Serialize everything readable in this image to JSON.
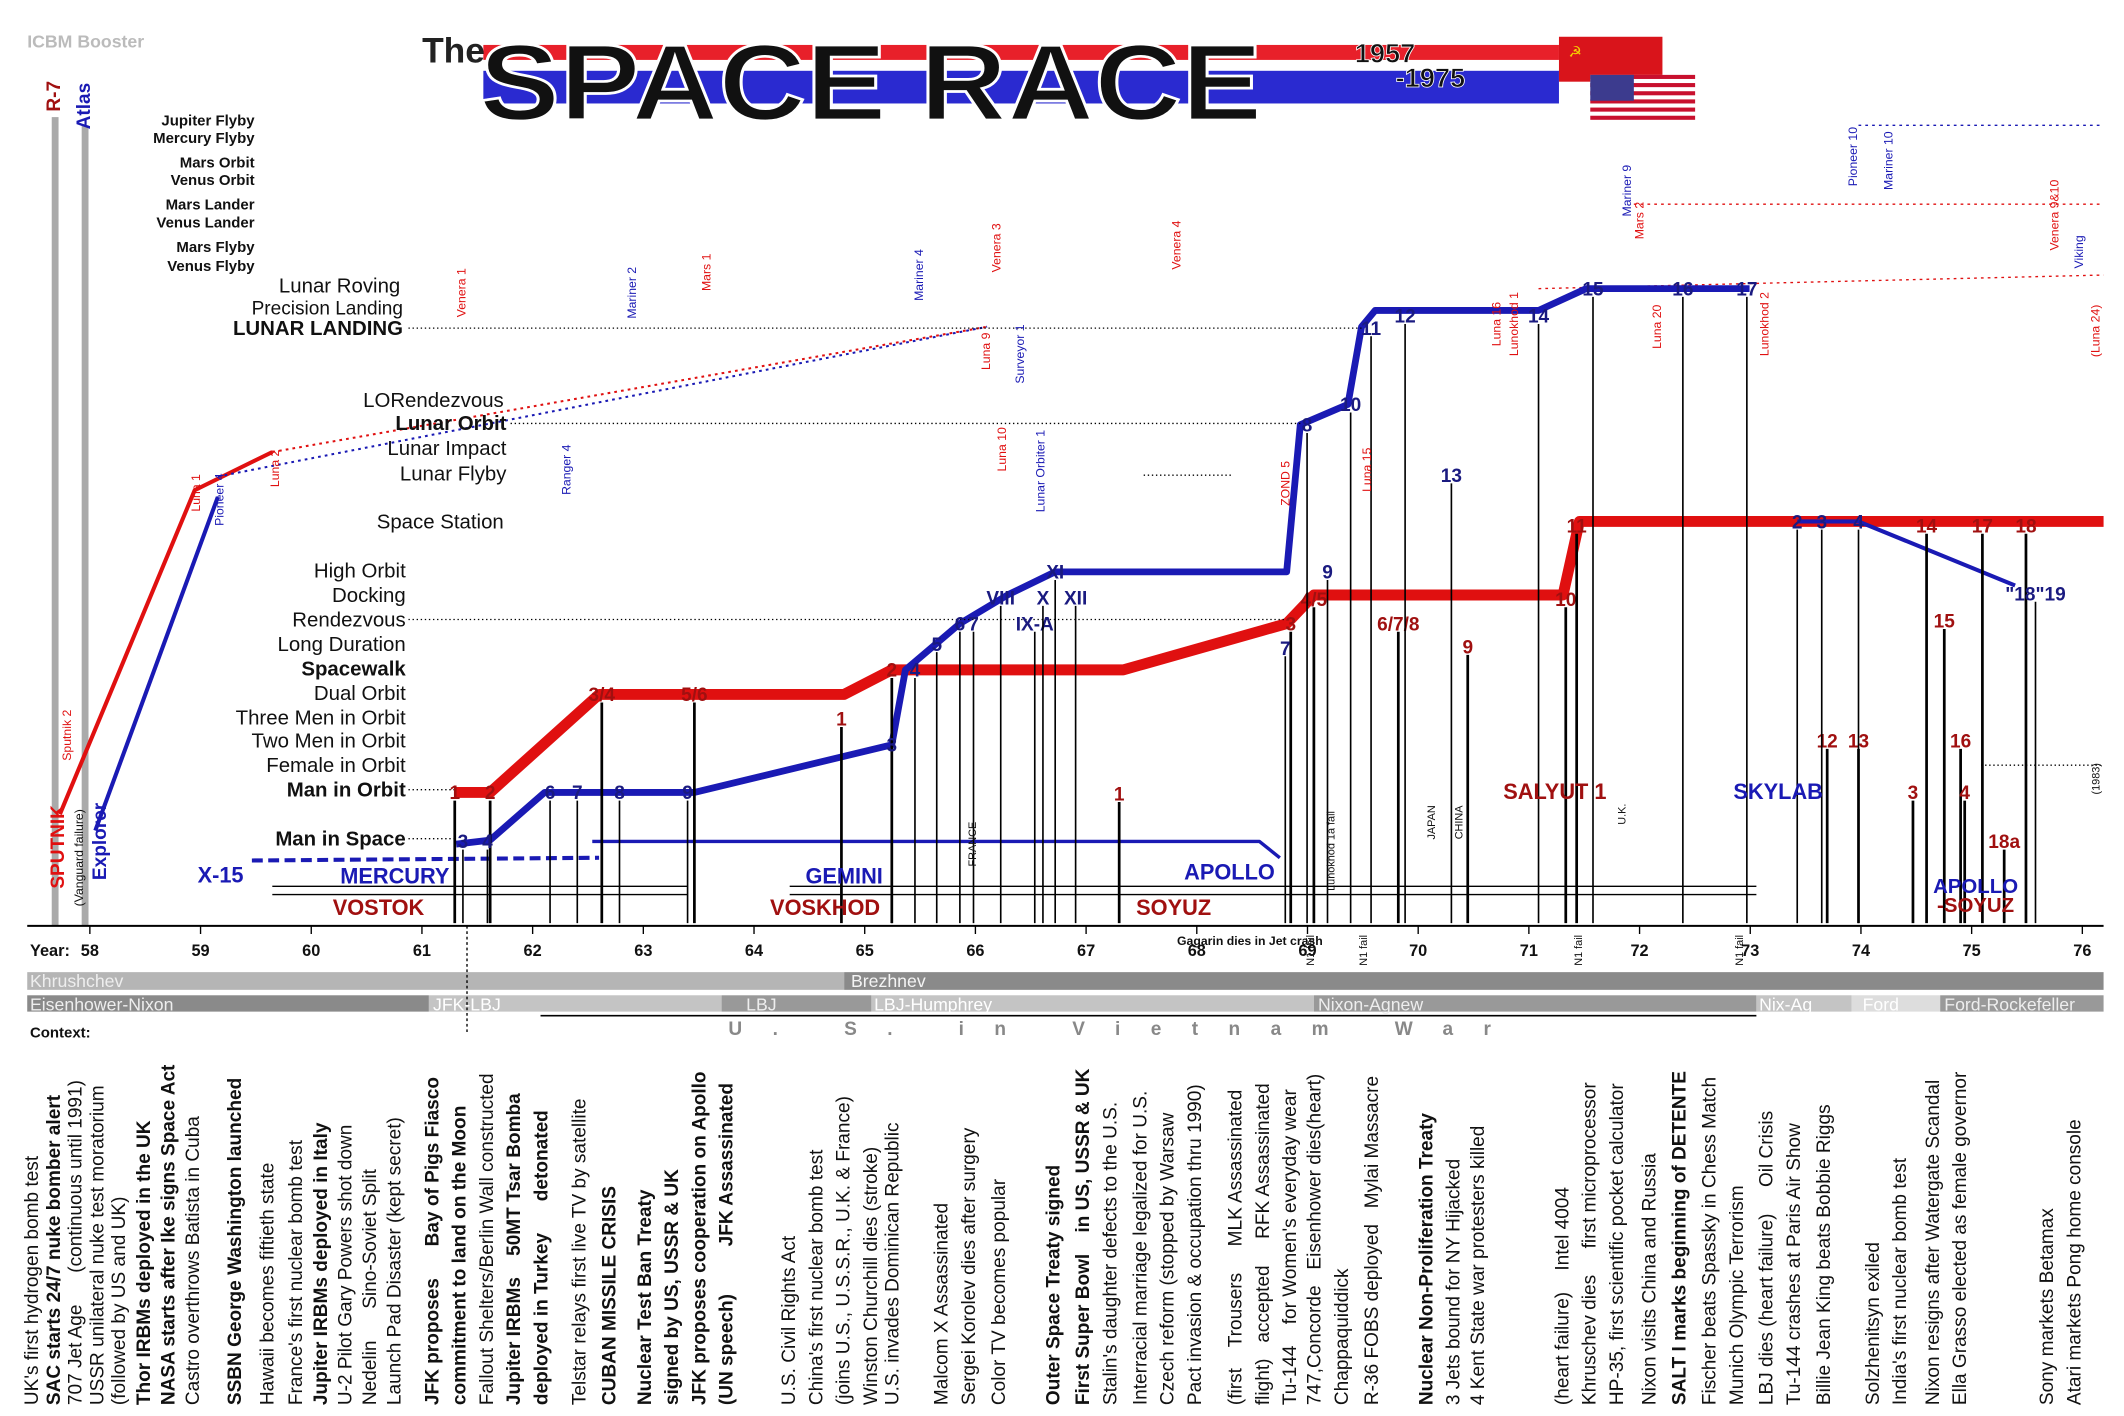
{
  "header": {
    "title_prefix": "The",
    "title": "SPACE RACE",
    "start": "1957",
    "end": "-1975",
    "booster_heading": "ICBM Booster",
    "boosters": [
      "R-7",
      "Atlas"
    ]
  },
  "milestones": [
    "Jupiter Flyby",
    "Mercury Flyby",
    "Mars Orbit",
    "Venus Orbit",
    "Mars Lander",
    "Venus Lander",
    "Mars Flyby",
    "Venus Flyby",
    "Lunar Roving",
    "Precision Landing",
    "LUNAR LANDING",
    "LORendezvous",
    "Lunar Orbit",
    "Lunar Impact",
    "Lunar Flyby",
    "Space Station",
    "High Orbit",
    "Docking",
    "Rendezvous",
    "Long Duration",
    "Spacewalk",
    "Dual Orbit",
    "Three Men in Orbit",
    "Two Men in Orbit",
    "Female in Orbit",
    "Man in Orbit",
    "Man in Space"
  ],
  "missions": [
    "Sputnik 2",
    "SPUTNIK",
    "(Vanguard failure)",
    "Explorer",
    "Luna 1",
    "Pioneer 4",
    "Luna 2",
    "Venera 1",
    "Mariner 2",
    "Mars 1",
    "Mariner 4",
    "Venera 3",
    "Venera 4",
    "Ranger 4",
    "Luna 9",
    "Surveyor 1",
    "Luna 10",
    "Lunar Orbiter 1",
    "ZOND 5",
    "Luna 15",
    "Luna 16",
    "Lunokhod 1",
    "Luna 20",
    "Lunokhod 2",
    "Mariner 9",
    "Mars 2",
    "Venera 9&10",
    "Pioneer 10",
    "Mariner 10",
    "Viking",
    "(Luna 24)",
    "N1 fail",
    "N1 fail",
    "N1 fail",
    "N1 fail",
    "Lunokhod 1a fail",
    "Gagarin dies in Jet crash",
    "FRANCE",
    "JAPAN",
    "CHINA",
    "U.K.",
    "(1983)"
  ],
  "programs": [
    "X-15",
    "MERCURY",
    "VOSTOK",
    "GEMINI",
    "VOSKHOD",
    "APOLLO",
    "SOYUZ",
    "SALYUT 1",
    "SKYLAB",
    "APOLLO",
    "-SOYUZ"
  ],
  "ussr_flights": [
    "1",
    "2",
    "3/4",
    "5/6",
    "1",
    "2",
    "1",
    "3",
    "4/5",
    "6/7/8",
    "9",
    "10",
    "11",
    "12",
    "13",
    "14",
    "15",
    "16",
    "17",
    "18",
    "3",
    "4",
    "18a"
  ],
  "us_flights": [
    "3",
    "4",
    "6",
    "7",
    "8",
    "9",
    "3",
    "4",
    "5",
    "6",
    "7",
    "VIII",
    "IX-A",
    "X",
    "XII",
    "XI",
    "7",
    "8",
    "9",
    "10",
    "11",
    "12",
    "13",
    "14",
    "15",
    "16",
    "17",
    "2",
    "3",
    "4",
    "\"18\"19"
  ],
  "axis": {
    "label": "Year:",
    "years": [
      "58",
      "59",
      "60",
      "61",
      "62",
      "63",
      "64",
      "65",
      "66",
      "67",
      "68",
      "69",
      "70",
      "71",
      "72",
      "73",
      "74",
      "75",
      "76"
    ]
  },
  "leaders": {
    "ussr": [
      "Khrushchev",
      "Brezhnev"
    ],
    "us": [
      "Eisenhower-Nixon",
      "JFK-LBJ",
      "LBJ",
      "LBJ-Humphrey",
      "Nixon-Agnew",
      "Nix-Ag",
      "Ford",
      "Ford-Rockefeller"
    ]
  },
  "war": "U. S. in Vietnam War",
  "context": {
    "heading": "Context:",
    "events": [
      "UK's first hydrogen bomb test",
      "SAC starts 24/7 nuke bomber alert",
      "707 Jet Age      (continuous until 1991)",
      "USSR unilateral nuke test moratorium",
      "(followed by US and UK)",
      "Thor IRBMs deployed in the UK",
      "NASA starts after Ike signs Space Act",
      "Castro overthrows Batista in Cuba",
      "SSBN George Washington launched",
      "Hawaii becomes fiftieth state",
      "France's first nuclear bomb test",
      "Jupiter IRBMs deployed in Italy",
      "U-2 Pilot Gary Powers shot down",
      "Nedelin      Sino-Soviet Split",
      "Launch Pad Disaster (kept secret)",
      "JFK proposes      Bay of Pigs Fiasco",
      "commitment to land on the Moon",
      "Fallout Shelters/Berlin Wall constructed",
      "Jupiter IRBMs    50MT Tsar Bomba",
      "deployed in Turkey      detonated",
      "Telstar relays first live TV by satellite",
      "CUBAN MISSILE CRISIS",
      "Nuclear Test Ban Treaty",
      "signed by US, USSR & UK",
      "JFK proposes cooperation on Apollo",
      "(UN speech)         JFK Assassinated",
      "U.S. Civil Rights Act",
      "China's first nuclear bomb test",
      "(joins U.S., U.S.S.R., U.K. & France)",
      "Winston Churchill dies (stroke)",
      "U.S. invades Dominican Republic",
      "Malcom X Assassinated",
      "Sergei Korolev dies after surgery",
      "Color TV becomes popular",
      "Outer Space Treaty signed",
      "First Super Bowl    in US, USSR & UK",
      "Stalin's daughter defects to the U.S.",
      "Interracial marriage legalized for U.S.",
      "Czech reform (stopped by Warsaw",
      "Pact invasion & occupation thru 1990)",
      "(first    Trousers     MLK Assassinated",
      "flight)   accepted     RFK Assassinated",
      "Tu-144    for Women's everyday wear",
      "747,Concorde   Eisenhower dies(heart)",
      "Chappaquiddick",
      "R-36 FOBS deployed   Mylai Massacre",
      "Nuclear Non-Proliferation Treaty",
      "3 Jets bound for NY Hijacked",
      "4 Kent State war protesters killed",
      "(heart failure)    Intel 4004",
      "Khruschev dies     first microprocessor",
      "HP-35, first scientific pocket calculator",
      "Nixon visits China and Russia",
      "SALT I marks beginning of DETENTE",
      "Fischer beats Spassky in Chess Match",
      "Munich Olympic Terrorism",
      "LBJ dies (heart failure)     Oil Crisis",
      "Tu-144 crashes at Paris Air Show",
      "Billie Jean King beats Bobbie Riggs",
      "Solzhenitsyn exiled",
      "India's first nuclear bomb test",
      "Nixon resigns after Watergate Scandal",
      "Ella Grasso elected as female governor",
      "Sony markets Betamax",
      "Atari markets Pong home console"
    ]
  }
}
